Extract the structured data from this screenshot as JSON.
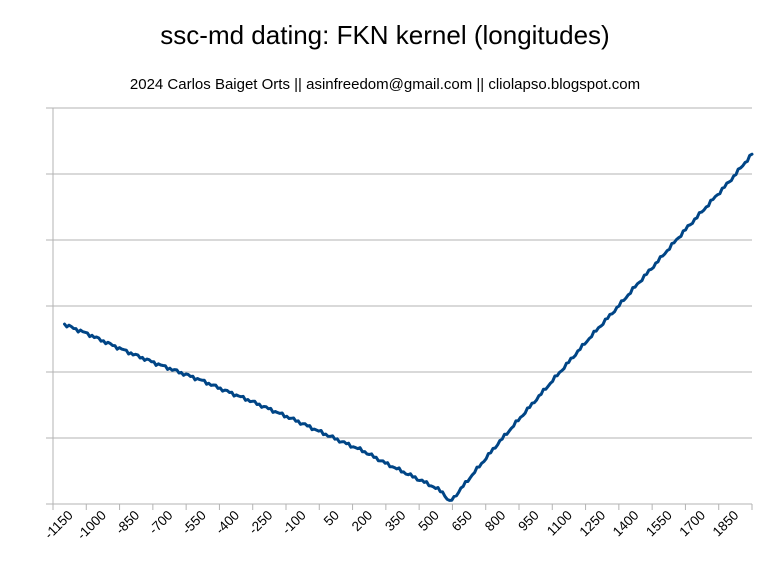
{
  "chart_data": {
    "type": "line",
    "title": "ssc-md dating: FKN kernel (longitudes)",
    "subtitle": "2024 Carlos Baiget Orts || asinfreedom@gmail.com || cliolapso.blogspot.com",
    "xlabel": "",
    "ylabel": "",
    "x_tick_labels": [
      "-1150",
      "-1000",
      "-850",
      "-700",
      "-550",
      "-400",
      "-250",
      "-100",
      "50",
      "200",
      "350",
      "500",
      "650",
      "800",
      "950",
      "1100",
      "1250",
      "1400",
      "1550",
      "1700",
      "1850"
    ],
    "xlim": [
      -1150,
      1900
    ],
    "ylim": [
      0,
      6
    ],
    "y_gridlines": 6,
    "y_tick_labels_visible": false,
    "grid": true,
    "legend": "none",
    "line_color": "#004586",
    "series": [
      {
        "x": [
          -1100,
          -1000,
          -900,
          -800,
          -700,
          -600,
          -500,
          -400,
          -300,
          -200,
          -100,
          0,
          100,
          200,
          300,
          400,
          500,
          550,
          580,
          600,
          700,
          800,
          900,
          1000,
          1100,
          1200,
          1300,
          1400,
          1500,
          1600,
          1700,
          1800,
          1900
        ],
        "values": [
          2.72,
          2.58,
          2.42,
          2.27,
          2.13,
          2.0,
          1.87,
          1.72,
          1.58,
          1.43,
          1.28,
          1.12,
          0.96,
          0.81,
          0.62,
          0.45,
          0.28,
          0.18,
          0.03,
          0.1,
          0.53,
          0.95,
          1.35,
          1.75,
          2.15,
          2.55,
          2.93,
          3.33,
          3.72,
          4.12,
          4.5,
          4.88,
          5.3
        ]
      }
    ]
  }
}
